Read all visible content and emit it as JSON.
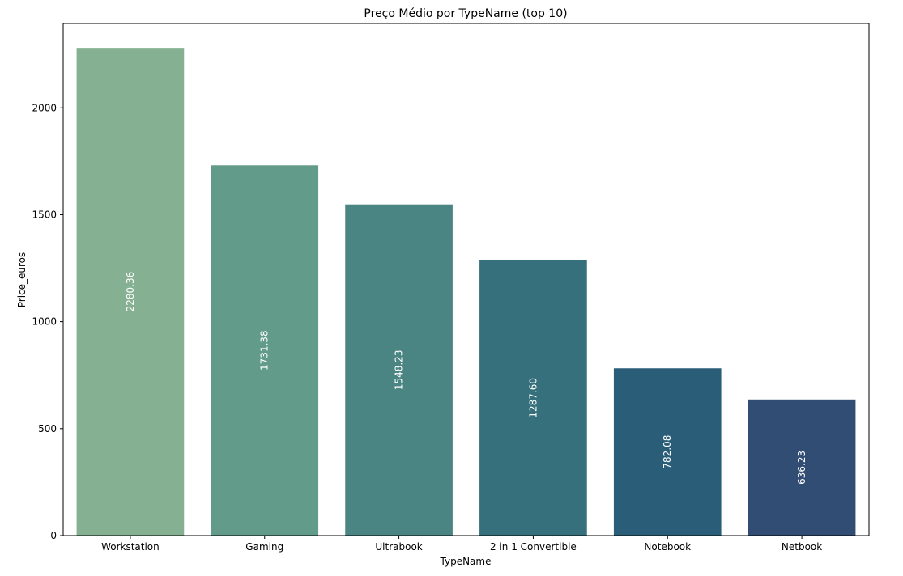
{
  "chart_data": {
    "type": "bar",
    "title": "Preço Médio por TypeName (top 10)",
    "xlabel": "TypeName",
    "ylabel": "Price_euros",
    "categories": [
      "Workstation",
      "Gaming",
      "Ultrabook",
      "2 in 1 Convertible",
      "Notebook",
      "Netbook"
    ],
    "values": [
      2280.36,
      1731.38,
      1548.23,
      1287.6,
      782.08,
      636.23
    ],
    "data_labels": [
      "2280.36",
      "1731.38",
      "1548.23",
      "1287.60",
      "782.08",
      "636.23"
    ],
    "colors": [
      "#85b091",
      "#629b8a",
      "#4b8583",
      "#36707c",
      "#2a5e78",
      "#314d73"
    ],
    "yticks": [
      0,
      500,
      1000,
      1500,
      2000
    ],
    "ylim": [
      0,
      2394.4
    ],
    "grid": false,
    "legend": "none",
    "data_label_color": "#ffffff",
    "data_label_orientation": "vertical"
  }
}
